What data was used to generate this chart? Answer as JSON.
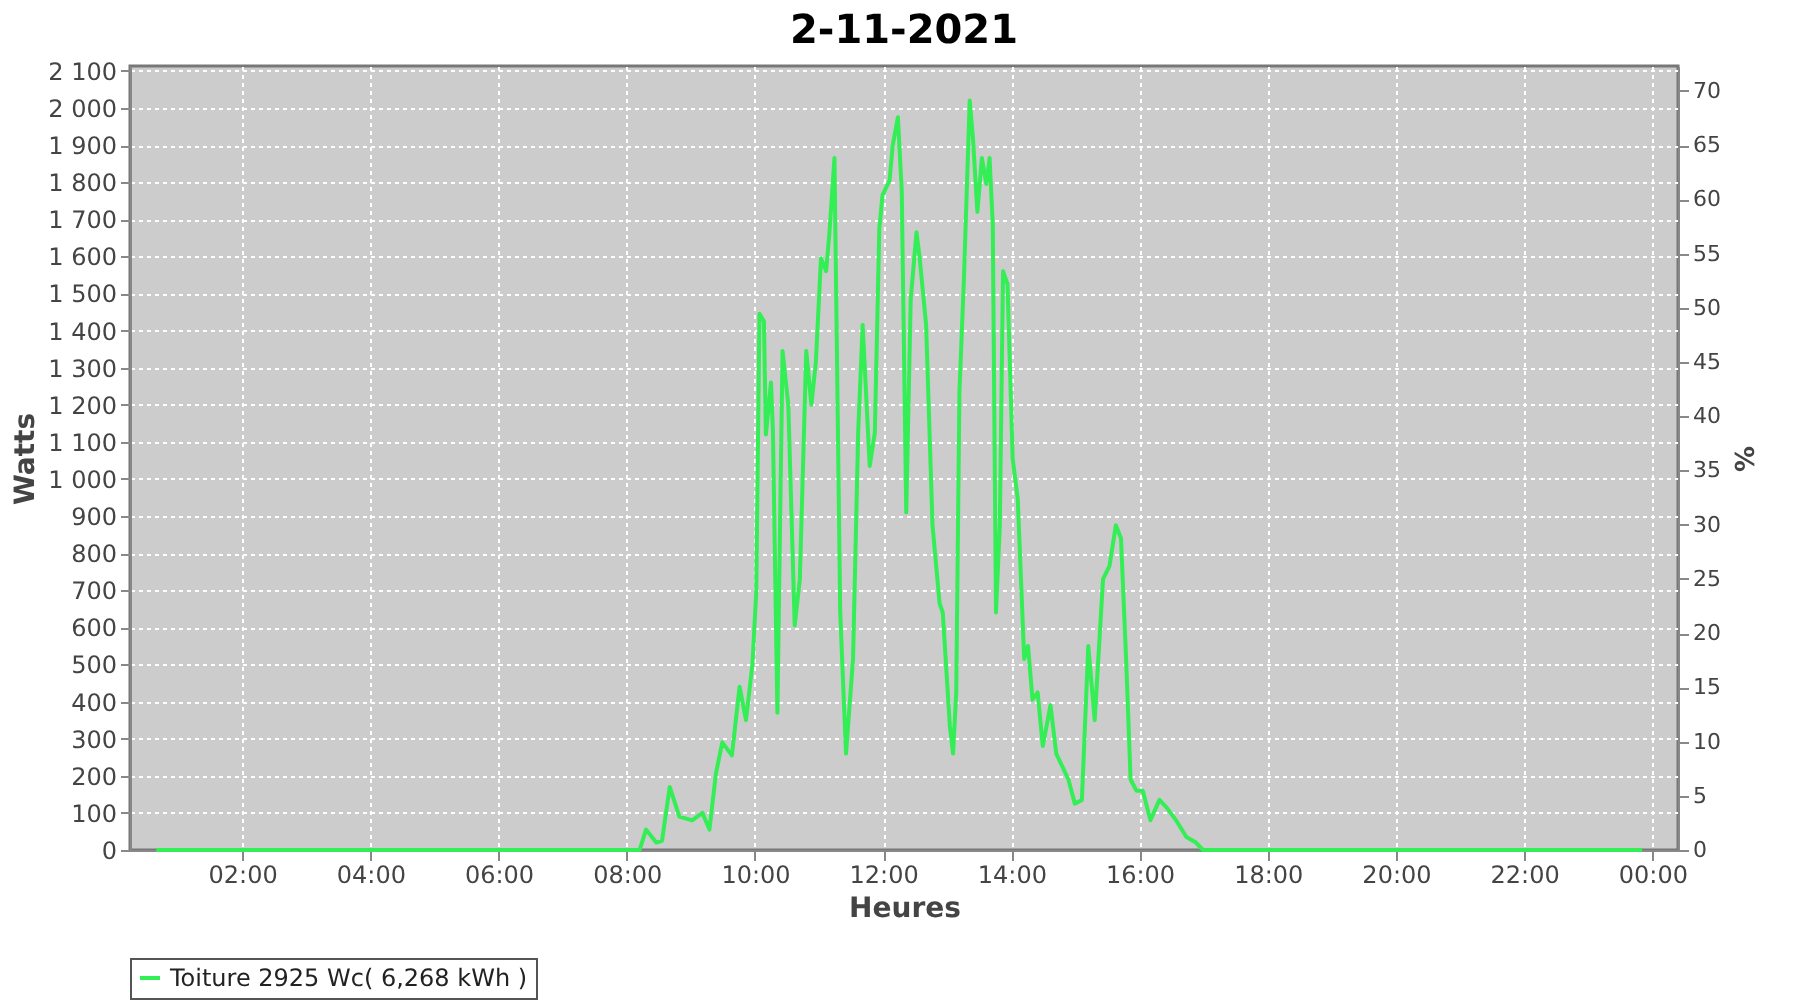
{
  "chart_data": {
    "type": "line",
    "title": "2-11-2021",
    "xlabel": "Heures",
    "ylabel": "Watts",
    "y2label": "%",
    "xlim": [
      0.25,
      24.4
    ],
    "ylim": [
      0,
      2113
    ],
    "y2lim": [
      0,
      72.3
    ],
    "xticks": [
      {
        "value": 2,
        "label": "02:00"
      },
      {
        "value": 4,
        "label": "04:00"
      },
      {
        "value": 6,
        "label": "06:00"
      },
      {
        "value": 8,
        "label": "08:00"
      },
      {
        "value": 10,
        "label": "10:00"
      },
      {
        "value": 12,
        "label": "12:00"
      },
      {
        "value": 14,
        "label": "14:00"
      },
      {
        "value": 16,
        "label": "16:00"
      },
      {
        "value": 18,
        "label": "18:00"
      },
      {
        "value": 20,
        "label": "20:00"
      },
      {
        "value": 22,
        "label": "22:00"
      },
      {
        "value": 24,
        "label": "00:00"
      }
    ],
    "yticks": [
      0,
      100,
      200,
      300,
      400,
      500,
      600,
      700,
      800,
      900,
      {
        "value": 1000,
        "label": "1 000"
      },
      {
        "value": 1100,
        "label": "1 100"
      },
      {
        "value": 1200,
        "label": "1 200"
      },
      {
        "value": 1300,
        "label": "1 300"
      },
      {
        "value": 1400,
        "label": "1 400"
      },
      {
        "value": 1500,
        "label": "1 500"
      },
      {
        "value": 1600,
        "label": "1 600"
      },
      {
        "value": 1700,
        "label": "1 700"
      },
      {
        "value": 1800,
        "label": "1 800"
      },
      {
        "value": 1900,
        "label": "1 900"
      },
      {
        "value": 2000,
        "label": "2 000"
      },
      {
        "value": 2100,
        "label": "2 100"
      }
    ],
    "y2ticks": [
      0,
      5,
      10,
      15,
      20,
      25,
      30,
      35,
      40,
      45,
      50,
      55,
      60,
      65,
      70
    ],
    "grid": true,
    "legend": "bottom",
    "marker": "none",
    "line_style": "solid",
    "series": [
      {
        "name": "Toiture 2925 Wc( 6,268 kWh )",
        "color": "#33ee55",
        "x": [
          0.66,
          8.15,
          8.2,
          8.3,
          8.46,
          8.55,
          8.67,
          8.82,
          9.02,
          9.18,
          9.29,
          9.39,
          9.49,
          9.64,
          9.76,
          9.86,
          9.96,
          10.02,
          10.07,
          10.14,
          10.17,
          10.25,
          10.28,
          10.35,
          10.43,
          10.52,
          10.62,
          10.7,
          10.8,
          10.88,
          10.95,
          11.03,
          11.11,
          11.16,
          11.24,
          11.33,
          11.42,
          11.53,
          11.61,
          11.68,
          11.79,
          11.87,
          11.94,
          11.99,
          12.1,
          12.15,
          12.23,
          12.29,
          12.36,
          12.43,
          12.52,
          12.57,
          12.67,
          12.77,
          12.88,
          12.93,
          13.04,
          13.09,
          13.14,
          13.19,
          13.26,
          13.35,
          13.4,
          13.47,
          13.54,
          13.61,
          13.66,
          13.71,
          13.76,
          13.82,
          13.87,
          13.94,
          14.02,
          14.1,
          14.2,
          14.26,
          14.33,
          14.41,
          14.49,
          14.61,
          14.7,
          14.89,
          14.99,
          15.1,
          15.2,
          15.3,
          15.43,
          15.53,
          15.63,
          15.71,
          15.79,
          15.86,
          15.95,
          16.05,
          16.17,
          16.31,
          16.42,
          16.57,
          16.73,
          16.88,
          16.99,
          23.84
        ],
        "values": [
          0,
          0,
          0,
          55,
          20,
          25,
          170,
          90,
          80,
          100,
          55,
          205,
          290,
          255,
          440,
          350,
          500,
          695,
          1445,
          1425,
          1120,
          1260,
          1130,
          370,
          1345,
          1200,
          605,
          730,
          1345,
          1200,
          1315,
          1595,
          1560,
          1660,
          1865,
          640,
          260,
          515,
          1125,
          1415,
          1035,
          1125,
          1675,
          1765,
          1805,
          1900,
          1975,
          1775,
          910,
          1485,
          1665,
          1595,
          1415,
          875,
          665,
          640,
          335,
          260,
          425,
          1235,
          1540,
          2020,
          1920,
          1720,
          1865,
          1795,
          1865,
          1685,
          640,
          875,
          1560,
          1525,
          1055,
          945,
          515,
          550,
          405,
          425,
          280,
          390,
          260,
          190,
          125,
          135,
          550,
          350,
          730,
          765,
          875,
          840,
          515,
          190,
          160,
          160,
          80,
          135,
          115,
          80,
          35,
          20,
          0,
          0
        ]
      }
    ]
  }
}
